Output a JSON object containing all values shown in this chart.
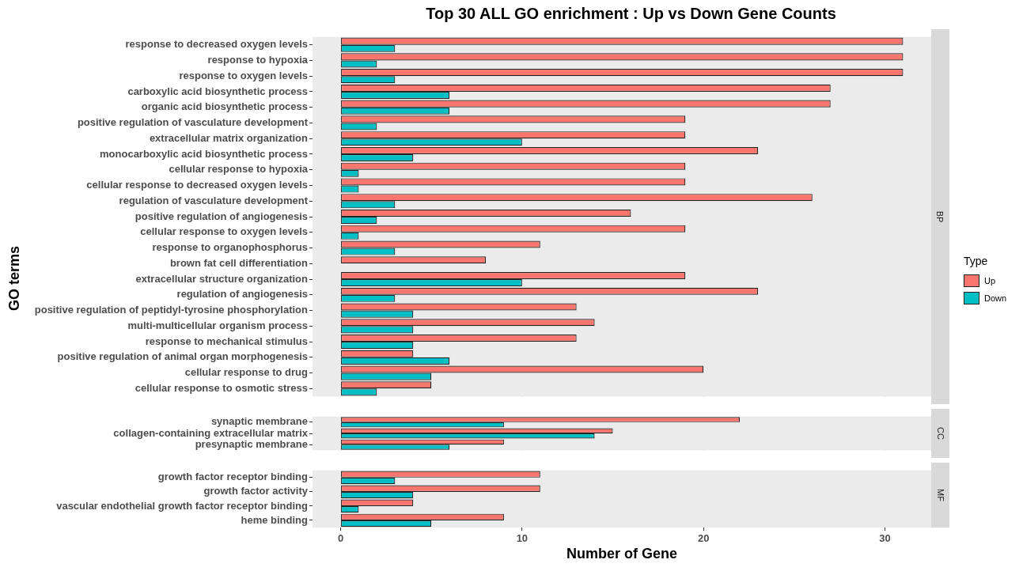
{
  "chart_data": [
    {
      "type": "bar",
      "orientation": "horizontal",
      "title": "Top 30 ALL GO enrichment : Up vs Down Gene Counts",
      "ylabel": "GO terms",
      "legend_title": "Type",
      "legend": "right",
      "grid": false,
      "tick_labels": "y",
      "annotations": [
        "BP"
      ],
      "categories": [
        "response to decreased oxygen levels",
        "response to hypoxia",
        "response to oxygen levels",
        "carboxylic acid biosynthetic process",
        "organic acid biosynthetic process",
        "positive regulation of vasculature development",
        "extracellular matrix organization",
        "monocarboxylic acid biosynthetic process",
        "cellular response to hypoxia",
        "cellular response to decreased oxygen levels",
        "regulation of vasculature development",
        "positive regulation of angiogenesis",
        "cellular response to oxygen levels",
        "response to organophosphorus",
        "brown fat cell differentiation",
        "extracellular structure organization",
        "regulation of angiogenesis",
        "positive regulation of peptidyl-tyrosine phosphorylation",
        "multi-multicellular organism process",
        "response to mechanical stimulus",
        "positive regulation of animal organ morphogenesis",
        "cellular response to drug",
        "cellular response to osmotic stress"
      ],
      "xlim": [
        -1.55,
        32.55
      ],
      "xticks": [
        0,
        10,
        20,
        30
      ],
      "series": [
        {
          "name": "Up",
          "color": "#f8766d",
          "values": [
            31,
            31,
            31,
            27,
            27,
            19,
            19,
            23,
            19,
            19,
            26,
            16,
            19,
            11,
            8,
            19,
            23,
            13,
            14,
            13,
            4,
            20,
            5
          ]
        },
        {
          "name": "Down",
          "color": "#00bfc4",
          "values": [
            3,
            2,
            3,
            6,
            6,
            2,
            10,
            4,
            1,
            1,
            3,
            2,
            1,
            3,
            null,
            10,
            3,
            4,
            4,
            4,
            6,
            5,
            2
          ]
        }
      ]
    },
    {
      "type": "bar",
      "orientation": "horizontal",
      "grid": false,
      "tick_labels": "y",
      "annotations": [
        "CC"
      ],
      "categories": [
        "synaptic membrane",
        "collagen-containing extracellular matrix",
        "presynaptic membrane"
      ],
      "xlim": [
        -1.55,
        32.55
      ],
      "xticks": [
        0,
        10,
        20,
        30
      ],
      "series": [
        {
          "color": "#f8766d",
          "values": [
            22,
            15,
            9
          ]
        },
        {
          "color": "#00bfc4",
          "values": [
            9,
            14,
            6
          ]
        }
      ]
    },
    {
      "type": "bar",
      "orientation": "horizontal",
      "grid": false,
      "xlabel": "Number of Gene",
      "annotations": [
        "MF"
      ],
      "categories": [
        "growth factor receptor binding",
        "growth factor activity",
        "vascular endothelial growth factor receptor binding",
        "heme binding"
      ],
      "xlim": [
        -1.55,
        32.55
      ],
      "xticks": [
        0,
        10,
        20,
        30
      ],
      "series": [
        {
          "color": "#f8766d",
          "values": [
            11,
            11,
            4,
            9
          ]
        },
        {
          "color": "#00bfc4",
          "values": [
            3,
            4,
            1,
            5
          ]
        }
      ]
    }
  ]
}
